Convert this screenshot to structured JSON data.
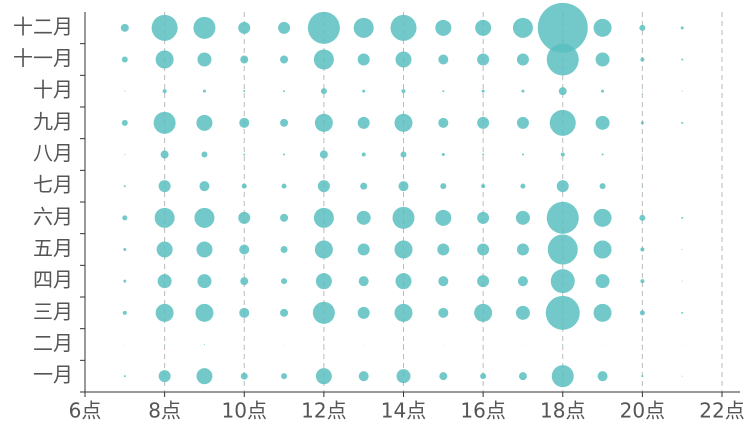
{
  "chart_data": {
    "type": "bubble",
    "categories": [
      "一月",
      "二月",
      "三月",
      "四月",
      "五月",
      "六月",
      "七月",
      "八月",
      "九月",
      "十月",
      "十一月",
      "十二月"
    ],
    "x": [
      7,
      8,
      9,
      10,
      11,
      12,
      13,
      14,
      15,
      16,
      17,
      18,
      19,
      20,
      21
    ],
    "values": [
      [
        1,
        6,
        8,
        3.5,
        3,
        8,
        5,
        7,
        4,
        3,
        4,
        11,
        5,
        1,
        0.5
      ],
      [
        0.3,
        0.5,
        0.5,
        0.3,
        0.3,
        0.5,
        0.3,
        0.5,
        0.3,
        0.3,
        0.3,
        0.5,
        0.3,
        0.3,
        0.3
      ],
      [
        2,
        9,
        9,
        5,
        4,
        11,
        6,
        9,
        5,
        9,
        7,
        17,
        9,
        2.5,
        1
      ],
      [
        1.5,
        7,
        7,
        4,
        3,
        8,
        5,
        8,
        5,
        6,
        5,
        12,
        7,
        2,
        0.5
      ],
      [
        1.5,
        8,
        8,
        5,
        3.5,
        9,
        6,
        9,
        6,
        6,
        6,
        15,
        9,
        2,
        0.5
      ],
      [
        2.5,
        10,
        10,
        6,
        4,
        10,
        7,
        11,
        8,
        6,
        7,
        16,
        9,
        3,
        1
      ],
      [
        1,
        6,
        5,
        2.5,
        2.5,
        6,
        3.5,
        5,
        3,
        2,
        2.5,
        6,
        3,
        0.5,
        0
      ],
      [
        0.5,
        4,
        3,
        1,
        1,
        4,
        2,
        3,
        1.5,
        1,
        1,
        2,
        1,
        0.5,
        0
      ],
      [
        3,
        11,
        8,
        5,
        4,
        9,
        6,
        9,
        5,
        6,
        6,
        13,
        7,
        1.5,
        1
      ],
      [
        0.5,
        2,
        1.5,
        1,
        1,
        3,
        1.5,
        2,
        1,
        1.5,
        1.5,
        4,
        1.5,
        0.5,
        0.5
      ],
      [
        3,
        9,
        7,
        4,
        4,
        10,
        6,
        8,
        5,
        6,
        6,
        16,
        7,
        2,
        1
      ],
      [
        4,
        13,
        11,
        6,
        6,
        16,
        10,
        13,
        8,
        8,
        10,
        25,
        9,
        3,
        1.5
      ]
    ],
    "color": "#5bbfbf",
    "xlim": [
      6,
      22
    ],
    "xticks": [
      {
        "value": 6,
        "label": "6点"
      },
      {
        "value": 8,
        "label": "8点"
      },
      {
        "value": 10,
        "label": "10点"
      },
      {
        "value": 12,
        "label": "12点"
      },
      {
        "value": 14,
        "label": "14点"
      },
      {
        "value": 16,
        "label": "16点"
      },
      {
        "value": 18,
        "label": "18点"
      },
      {
        "value": 20,
        "label": "20点"
      },
      {
        "value": 22,
        "label": "22点"
      }
    ],
    "grid": true
  }
}
